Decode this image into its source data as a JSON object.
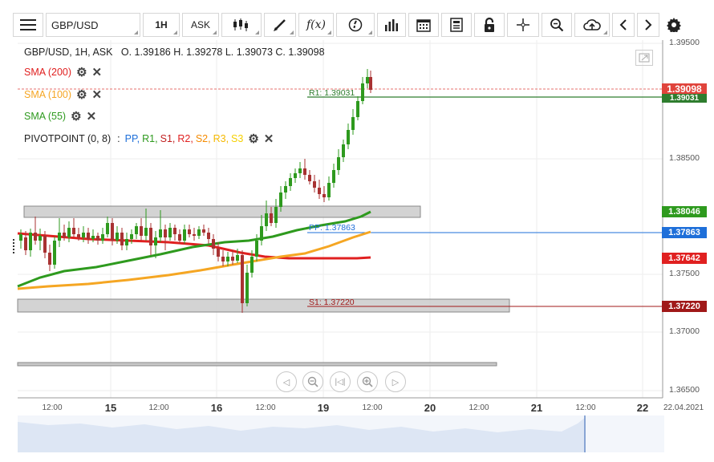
{
  "toolbar": {
    "symbol": "GBP/USD",
    "timeframe": "1H",
    "price_type": "ASK",
    "fx_label": "f(x)",
    "icons": [
      "menu-icon",
      "candlestick-type-icon",
      "draw-pen-icon",
      "indicator-fx-icon",
      "info-icon",
      "bar-chart-icon",
      "calendar-icon",
      "news-icon",
      "lock-icon",
      "crosshair-icon",
      "zoom-icon",
      "cloud-upload-icon",
      "prev-icon",
      "next-icon",
      "settings-icon"
    ]
  },
  "chart": {
    "header": "GBP/USD, 1H, ASK   O. 1.39186 H. 1.39278 L. 1.39073 C. 1.39098",
    "indicators": [
      {
        "label": "SMA (200)",
        "color": "#e02020"
      },
      {
        "label": "SMA (100)",
        "color": "#f5a623"
      },
      {
        "label": "SMA (55)",
        "color": "#2e9a1e"
      }
    ],
    "pivot": {
      "label": "PIVOTPOINT (0, 8)",
      "sep": ":",
      "items": [
        {
          "text": "PP,",
          "color": "#1e6fd9"
        },
        {
          "text": "R1,",
          "color": "#2e9a1e"
        },
        {
          "text": "S1,",
          "color": "#c02020"
        },
        {
          "text": "R2,",
          "color": "#e02020"
        },
        {
          "text": "S2,",
          "color": "#f58a00"
        },
        {
          "text": "R3,",
          "color": "#f5b800"
        },
        {
          "text": "S3",
          "color": "#f5d000"
        }
      ]
    },
    "levels": {
      "r1": "R1: 1.39031",
      "pp": "PP: 1.37863",
      "s1": "S1: 1.37220"
    }
  },
  "yaxis": {
    "ticks": [
      "1.39500",
      "1.38500",
      "1.37500",
      "1.37000",
      "1.36500"
    ],
    "badges": [
      {
        "label": "1.39098",
        "color": "#e0443c"
      },
      {
        "label": "1.39031",
        "color": "#2e7d2e"
      },
      {
        "label": "1.38046",
        "color": "#2e9a1e"
      },
      {
        "label": "1.37863",
        "color": "#1e6fd9"
      },
      {
        "label": "1.37642",
        "color": "#e02020"
      },
      {
        "label": "1.37220",
        "color": "#a01818"
      }
    ]
  },
  "xaxis": {
    "labels": [
      "12:00",
      "15",
      "12:00",
      "16",
      "12:00",
      "19",
      "12:00",
      "20",
      "12:00",
      "21",
      "12:00",
      "22",
      "22.04.2021"
    ]
  },
  "chart_data": {
    "type": "candlestick",
    "symbol": "GBP/USD",
    "timeframe": "1H",
    "ohlc": {
      "open": 1.39186,
      "high": 1.39278,
      "low": 1.39073,
      "close": 1.39098
    },
    "indicator_values": {
      "sma_55": 1.38046,
      "sma_100": 1.37863,
      "sma_200": 1.37642
    },
    "pivot_levels": {
      "r1": 1.39031,
      "pp": 1.37863,
      "s1": 1.3722
    },
    "ylim": [
      1.3645,
      1.3955
    ]
  }
}
